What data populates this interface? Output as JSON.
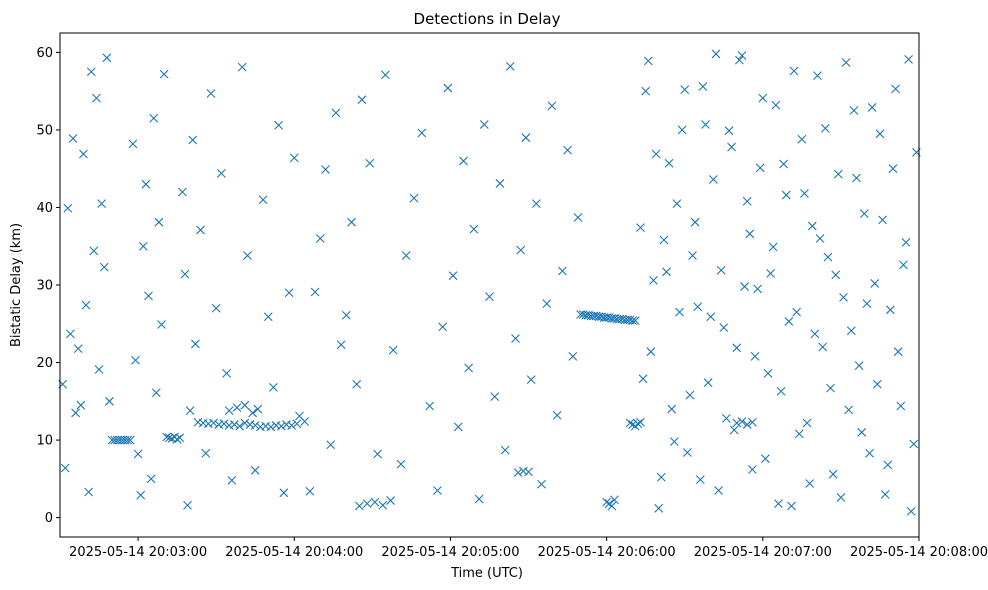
{
  "chart_data": {
    "type": "scatter",
    "title": "Detections in Delay",
    "xlabel": "Time (UTC)",
    "ylabel": "Bistatic Delay (km)",
    "marker": "x",
    "color": "#1f77b4",
    "x_unit": "seconds since 2025-05-14 20:00:00 UTC",
    "xlim": [
      150,
      480
    ],
    "ylim": [
      -2.5,
      62.5
    ],
    "xticks": [
      {
        "value": 180,
        "label": "2025-05-14 20:03:00"
      },
      {
        "value": 240,
        "label": "2025-05-14 20:04:00"
      },
      {
        "value": 300,
        "label": "2025-05-14 20:05:00"
      },
      {
        "value": 360,
        "label": "2025-05-14 20:06:00"
      },
      {
        "value": 420,
        "label": "2025-05-14 20:07:00"
      },
      {
        "value": 480,
        "label": "2025-05-14 20:08:00"
      }
    ],
    "yticks": [
      {
        "value": 0,
        "label": "0"
      },
      {
        "value": 10,
        "label": "10"
      },
      {
        "value": 20,
        "label": "20"
      },
      {
        "value": 30,
        "label": "30"
      },
      {
        "value": 40,
        "label": "40"
      },
      {
        "value": 50,
        "label": "50"
      },
      {
        "value": 60,
        "label": "60"
      }
    ],
    "grid": false,
    "points": [
      [
        170,
        10
      ],
      [
        171,
        10
      ],
      [
        172,
        10
      ],
      [
        173,
        10
      ],
      [
        174,
        10
      ],
      [
        175,
        10
      ],
      [
        176,
        10
      ],
      [
        177,
        10
      ],
      [
        191,
        10.4
      ],
      [
        192,
        10.3
      ],
      [
        193,
        10.2
      ],
      [
        194,
        10.4
      ],
      [
        195,
        10.1
      ],
      [
        196,
        10.3
      ],
      [
        203,
        12.3
      ],
      [
        205,
        12.2
      ],
      [
        207,
        12.1
      ],
      [
        209,
        12.2
      ],
      [
        211,
        12.0
      ],
      [
        213,
        12.1
      ],
      [
        215,
        11.9
      ],
      [
        217,
        12.0
      ],
      [
        219,
        11.8
      ],
      [
        221,
        12.2
      ],
      [
        223,
        12.0
      ],
      [
        225,
        11.9
      ],
      [
        227,
        11.7
      ],
      [
        229,
        11.8
      ],
      [
        231,
        11.7
      ],
      [
        233,
        11.9
      ],
      [
        235,
        11.8
      ],
      [
        237,
        12.0
      ],
      [
        239,
        11.9
      ],
      [
        241,
        12.1
      ],
      [
        215,
        13.8
      ],
      [
        218,
        14.2
      ],
      [
        221,
        14.5
      ],
      [
        224,
        13.5
      ],
      [
        226,
        14.0
      ],
      [
        265,
        1.5
      ],
      [
        268,
        1.8
      ],
      [
        271,
        2.0
      ],
      [
        274,
        1.6
      ],
      [
        277,
        2.2
      ],
      [
        350,
        26.2
      ],
      [
        351,
        26.2
      ],
      [
        352,
        26.1
      ],
      [
        353,
        26.1
      ],
      [
        354,
        26.0
      ],
      [
        355,
        26.0
      ],
      [
        356,
        26.0
      ],
      [
        357,
        25.9
      ],
      [
        358,
        25.9
      ],
      [
        359,
        25.8
      ],
      [
        360,
        25.8
      ],
      [
        361,
        25.8
      ],
      [
        362,
        25.7
      ],
      [
        363,
        25.7
      ],
      [
        364,
        25.6
      ],
      [
        365,
        25.6
      ],
      [
        366,
        25.6
      ],
      [
        367,
        25.5
      ],
      [
        368,
        25.5
      ],
      [
        369,
        25.5
      ],
      [
        370,
        25.4
      ],
      [
        371,
        25.4
      ],
      [
        360,
        2.0
      ],
      [
        361,
        1.8
      ],
      [
        362,
        1.5
      ],
      [
        363,
        2.3
      ],
      [
        369,
        12.2
      ],
      [
        370,
        12.0
      ],
      [
        371,
        11.8
      ],
      [
        372,
        12.1
      ],
      [
        373,
        12.3
      ],
      [
        410,
        12.2
      ],
      [
        412,
        12.4
      ],
      [
        414,
        12.0
      ],
      [
        416,
        12.3
      ],
      [
        326,
        5.8
      ],
      [
        328,
        6.0
      ],
      [
        330,
        5.9
      ],
      [
        242,
        13.1
      ],
      [
        244,
        12.4
      ],
      [
        246,
        3.4
      ],
      [
        248,
        29.1
      ],
      [
        250,
        36.0
      ],
      [
        252,
        44.9
      ],
      [
        254,
        9.4
      ],
      [
        256,
        52.2
      ],
      [
        258,
        22.3
      ],
      [
        260,
        26.1
      ],
      [
        262,
        38.1
      ],
      [
        264,
        17.2
      ],
      [
        266,
        53.9
      ],
      [
        269,
        45.7
      ],
      [
        272,
        8.2
      ],
      [
        275,
        57.1
      ],
      [
        278,
        21.6
      ],
      [
        281,
        6.9
      ],
      [
        283,
        33.8
      ],
      [
        286,
        41.2
      ],
      [
        289,
        49.6
      ],
      [
        292,
        14.4
      ],
      [
        295,
        3.5
      ],
      [
        297,
        24.6
      ],
      [
        299,
        55.4
      ],
      [
        301,
        31.2
      ],
      [
        303,
        11.7
      ],
      [
        305,
        46.0
      ],
      [
        307,
        19.3
      ],
      [
        309,
        37.2
      ],
      [
        311,
        2.4
      ],
      [
        313,
        50.7
      ],
      [
        315,
        28.5
      ],
      [
        317,
        15.6
      ],
      [
        319,
        43.1
      ],
      [
        321,
        8.7
      ],
      [
        323,
        58.2
      ],
      [
        325,
        23.1
      ],
      [
        327,
        34.5
      ],
      [
        329,
        49.0
      ],
      [
        331,
        17.8
      ],
      [
        333,
        40.5
      ],
      [
        335,
        4.3
      ],
      [
        337,
        27.6
      ],
      [
        339,
        53.1
      ],
      [
        341,
        13.2
      ],
      [
        343,
        31.8
      ],
      [
        345,
        47.4
      ],
      [
        347,
        20.8
      ],
      [
        349,
        38.7
      ],
      [
        151,
        17.2
      ],
      [
        152,
        6.4
      ],
      [
        153,
        39.9
      ],
      [
        154,
        23.7
      ],
      [
        155,
        48.9
      ],
      [
        156,
        13.5
      ],
      [
        157,
        21.8
      ],
      [
        158,
        14.5
      ],
      [
        159,
        46.9
      ],
      [
        160,
        27.4
      ],
      [
        161,
        3.3
      ],
      [
        162,
        57.5
      ],
      [
        163,
        34.4
      ],
      [
        164,
        54.1
      ],
      [
        165,
        19.1
      ],
      [
        166,
        40.5
      ],
      [
        167,
        32.3
      ],
      [
        168,
        59.3
      ],
      [
        169,
        15.0
      ],
      [
        178,
        48.2
      ],
      [
        179,
        20.3
      ],
      [
        180,
        8.2
      ],
      [
        181,
        2.9
      ],
      [
        182,
        35.0
      ],
      [
        183,
        43.0
      ],
      [
        184,
        28.6
      ],
      [
        185,
        5.0
      ],
      [
        186,
        51.5
      ],
      [
        187,
        16.1
      ],
      [
        188,
        38.1
      ],
      [
        189,
        24.9
      ],
      [
        190,
        57.2
      ],
      [
        197,
        42.0
      ],
      [
        198,
        31.4
      ],
      [
        199,
        1.6
      ],
      [
        200,
        13.8
      ],
      [
        201,
        48.7
      ],
      [
        202,
        22.4
      ],
      [
        204,
        37.1
      ],
      [
        206,
        8.3
      ],
      [
        208,
        54.7
      ],
      [
        210,
        27.0
      ],
      [
        212,
        44.4
      ],
      [
        214,
        18.6
      ],
      [
        216,
        4.8
      ],
      [
        220,
        58.1
      ],
      [
        222,
        33.8
      ],
      [
        225,
        6.1
      ],
      [
        228,
        41.0
      ],
      [
        230,
        25.9
      ],
      [
        232,
        16.8
      ],
      [
        234,
        50.6
      ],
      [
        236,
        3.2
      ],
      [
        238,
        29.0
      ],
      [
        240,
        46.4
      ],
      [
        373,
        37.4
      ],
      [
        375,
        55.0
      ],
      [
        377,
        21.4
      ],
      [
        379,
        46.9
      ],
      [
        381,
        5.2
      ],
      [
        383,
        31.7
      ],
      [
        385,
        14.0
      ],
      [
        387,
        40.5
      ],
      [
        389,
        50.0
      ],
      [
        391,
        8.4
      ],
      [
        393,
        33.8
      ],
      [
        395,
        27.2
      ],
      [
        397,
        55.6
      ],
      [
        399,
        17.4
      ],
      [
        401,
        43.6
      ],
      [
        403,
        3.5
      ],
      [
        405,
        24.5
      ],
      [
        407,
        49.9
      ],
      [
        409,
        11.3
      ],
      [
        411,
        59.0
      ],
      [
        413,
        29.8
      ],
      [
        415,
        36.6
      ],
      [
        417,
        20.8
      ],
      [
        419,
        45.1
      ],
      [
        421,
        7.6
      ],
      [
        423,
        31.5
      ],
      [
        425,
        53.2
      ],
      [
        427,
        16.3
      ],
      [
        429,
        41.6
      ],
      [
        431,
        1.5
      ],
      [
        433,
        26.5
      ],
      [
        435,
        48.8
      ],
      [
        437,
        12.2
      ],
      [
        439,
        37.6
      ],
      [
        441,
        57.0
      ],
      [
        443,
        22.0
      ],
      [
        445,
        33.6
      ],
      [
        447,
        5.6
      ],
      [
        449,
        44.3
      ],
      [
        451,
        28.4
      ],
      [
        453,
        13.9
      ],
      [
        455,
        52.5
      ],
      [
        457,
        19.6
      ],
      [
        459,
        39.2
      ],
      [
        461,
        8.3
      ],
      [
        463,
        30.2
      ],
      [
        465,
        49.5
      ],
      [
        467,
        3.0
      ],
      [
        469,
        26.8
      ],
      [
        471,
        55.3
      ],
      [
        473,
        14.4
      ],
      [
        475,
        35.5
      ],
      [
        477,
        0.8
      ],
      [
        479,
        47.1
      ],
      [
        478,
        9.5
      ],
      [
        476,
        59.1
      ],
      [
        474,
        32.6
      ],
      [
        472,
        21.4
      ],
      [
        470,
        45.0
      ],
      [
        468,
        6.8
      ],
      [
        466,
        38.4
      ],
      [
        464,
        17.2
      ],
      [
        462,
        52.9
      ],
      [
        460,
        27.6
      ],
      [
        458,
        11.0
      ],
      [
        456,
        43.8
      ],
      [
        454,
        24.1
      ],
      [
        452,
        58.7
      ],
      [
        450,
        2.6
      ],
      [
        448,
        31.3
      ],
      [
        446,
        16.7
      ],
      [
        444,
        50.2
      ],
      [
        442,
        36.0
      ],
      [
        440,
        23.7
      ],
      [
        438,
        4.4
      ],
      [
        436,
        41.8
      ],
      [
        434,
        10.8
      ],
      [
        432,
        57.6
      ],
      [
        430,
        25.3
      ],
      [
        428,
        45.6
      ],
      [
        426,
        1.8
      ],
      [
        424,
        34.9
      ],
      [
        422,
        18.6
      ],
      [
        420,
        54.1
      ],
      [
        418,
        29.5
      ],
      [
        416,
        6.2
      ],
      [
        414,
        40.8
      ],
      [
        412,
        59.6
      ],
      [
        410,
        21.9
      ],
      [
        408,
        47.8
      ],
      [
        406,
        12.8
      ],
      [
        404,
        31.9
      ],
      [
        402,
        59.8
      ],
      [
        400,
        25.9
      ],
      [
        398,
        50.7
      ],
      [
        396,
        4.9
      ],
      [
        394,
        38.1
      ],
      [
        392,
        15.8
      ],
      [
        390,
        55.2
      ],
      [
        388,
        26.5
      ],
      [
        386,
        9.8
      ],
      [
        384,
        45.7
      ],
      [
        382,
        35.8
      ],
      [
        380,
        1.2
      ],
      [
        378,
        30.6
      ],
      [
        376,
        58.9
      ],
      [
        374,
        17.9
      ]
    ]
  }
}
